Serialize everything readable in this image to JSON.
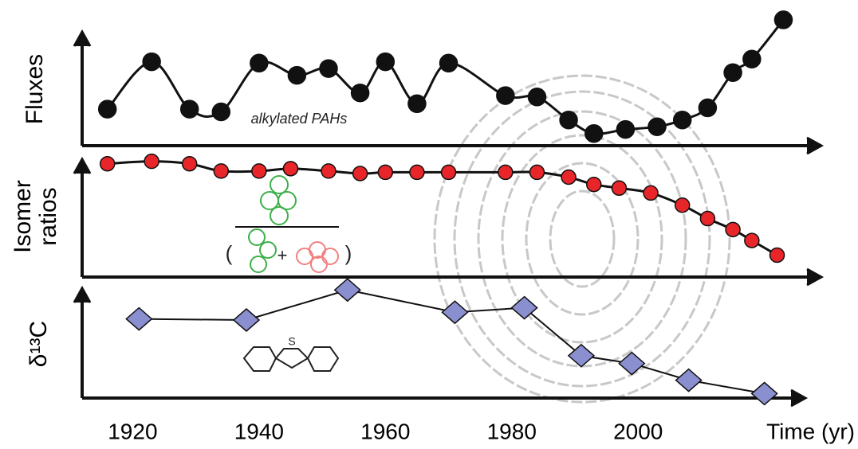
{
  "chart_data": [
    {
      "type": "line",
      "ylabel": "Fluxes",
      "xlim": [
        1912,
        2029
      ],
      "ylim": [
        0,
        100
      ],
      "smooth": true,
      "marker": "circle",
      "annotations": [
        "alkylated PAHs"
      ],
      "series": [
        {
          "color": "#111111",
          "x": [
            1916,
            1923,
            1929,
            1934,
            1940,
            1946,
            1951,
            1956,
            1960,
            1965,
            1970,
            1979,
            1984,
            1989,
            1993,
            1998,
            2003,
            2007,
            2011,
            2015,
            2018,
            2023
          ],
          "values": [
            27,
            62,
            27,
            25,
            61,
            52,
            57,
            39,
            62,
            31,
            61,
            37,
            36,
            19,
            9,
            12,
            14,
            19,
            28,
            54,
            64,
            93
          ]
        }
      ]
    },
    {
      "type": "line",
      "ylabel": [
        "Isomer",
        "ratios"
      ],
      "xlim": [
        1912,
        2029
      ],
      "ylim": [
        0,
        100
      ],
      "smooth": true,
      "marker": "circle",
      "annotations": [
        "(",
        "+",
        ")"
      ],
      "series": [
        {
          "color": "#e8262a",
          "x": [
            1916,
            1923,
            1929,
            1934,
            1940,
            1945,
            1951,
            1956,
            1960,
            1965,
            1970,
            1979,
            1984,
            1989,
            1993,
            1997,
            2002,
            2007,
            2011,
            2015,
            2018,
            2022
          ],
          "values": [
            93,
            95,
            93,
            87,
            87,
            89,
            87,
            85,
            86,
            86,
            86,
            86,
            86,
            82,
            76,
            73,
            69,
            59,
            48,
            39,
            30,
            18
          ]
        }
      ]
    },
    {
      "type": "line",
      "ylabel": "δ¹³C",
      "xlabel": "Time (yr)",
      "xlim": [
        1912,
        2029
      ],
      "ylim": [
        0,
        100
      ],
      "smooth": false,
      "marker": "diamond",
      "annotations": [
        "S"
      ],
      "xticks": [
        1920,
        1940,
        1960,
        1980,
        2000
      ],
      "series": [
        {
          "color": "#8a8fcf",
          "x": [
            1921,
            1938,
            1954,
            1971,
            1982,
            1991,
            1999,
            2008,
            2020
          ],
          "values": [
            71,
            70,
            97,
            77,
            81,
            38,
            31,
            16,
            4
          ]
        }
      ]
    }
  ]
}
